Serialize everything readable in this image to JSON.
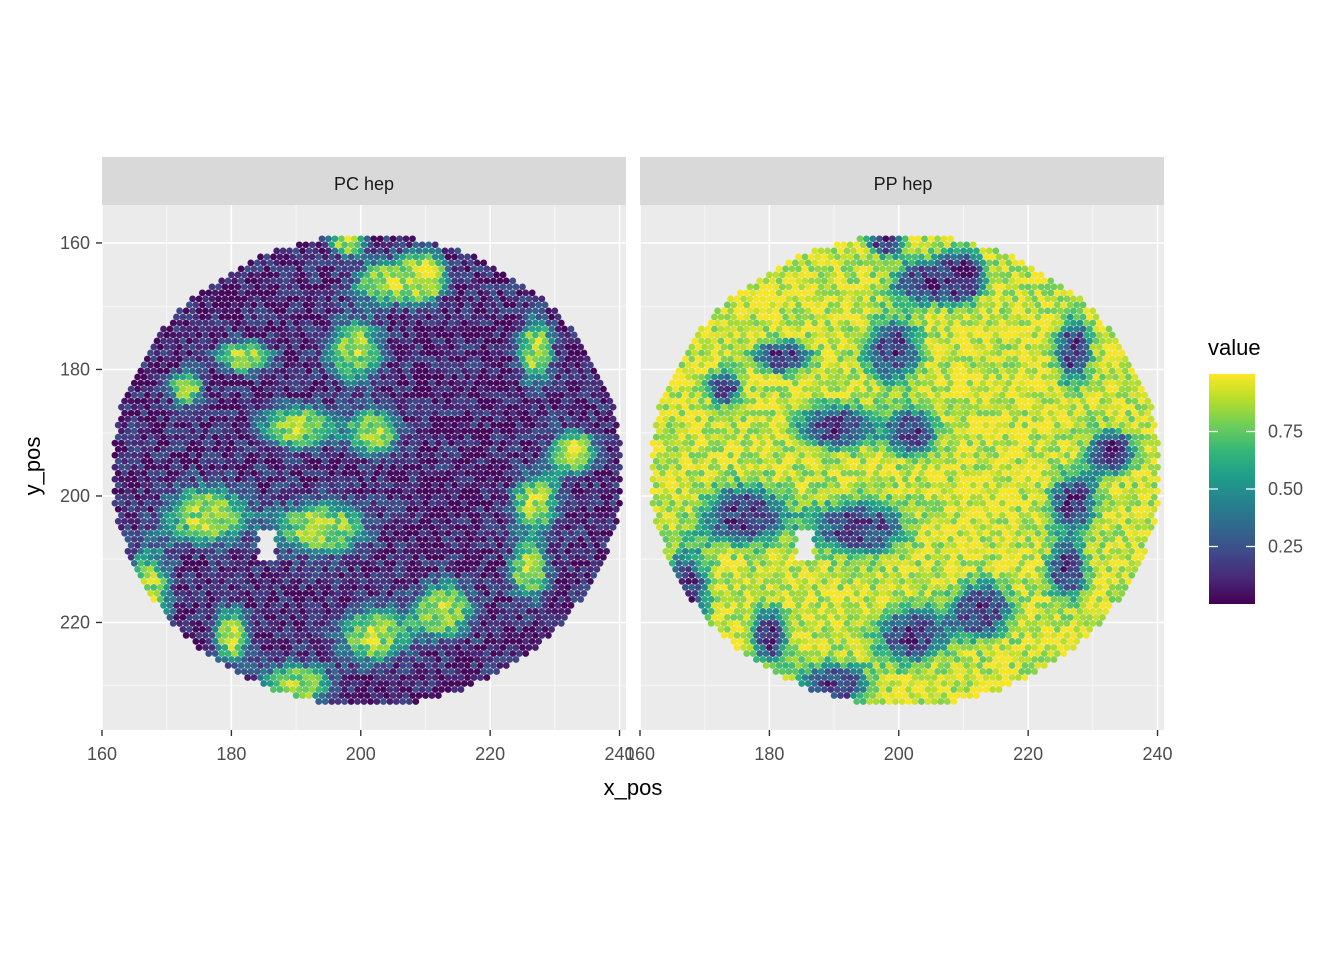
{
  "chart_data": {
    "type": "heatmap",
    "description_type": "faceted hexagonal spatial spot map",
    "x_label": "x_pos",
    "y_label": "y_pos",
    "x_range": [
      160,
      241
    ],
    "y_range": [
      154,
      237
    ],
    "y_reversed": true,
    "x_ticks": [
      160,
      180,
      200,
      220,
      240
    ],
    "y_ticks": [
      160,
      180,
      200,
      220
    ],
    "x_tick_labels": [
      "160",
      "180",
      "200",
      "220",
      "240"
    ],
    "y_tick_labels": [
      "160",
      "180",
      "200",
      "220"
    ],
    "grid": true,
    "color_scale": "viridis",
    "legend": {
      "title": "value",
      "position": "right",
      "breaks": [
        0.25,
        0.5,
        0.75
      ],
      "break_labels": [
        "0.25",
        "0.50",
        "0.75"
      ],
      "range": [
        0,
        1
      ],
      "colors": [
        "#440154",
        "#482878",
        "#3e4a89",
        "#31688e",
        "#26828e",
        "#1f9e89",
        "#35b779",
        "#6ece58",
        "#b5de2b",
        "#fde725"
      ]
    },
    "spot_region": {
      "center_x": 201,
      "center_y": 196,
      "radius": 39.5
    },
    "facets": [
      {
        "label": "PC hep",
        "high_blobs": "PC",
        "invert": false
      },
      {
        "label": "PP hep",
        "high_blobs": "PC",
        "invert": true
      }
    ]
  }
}
